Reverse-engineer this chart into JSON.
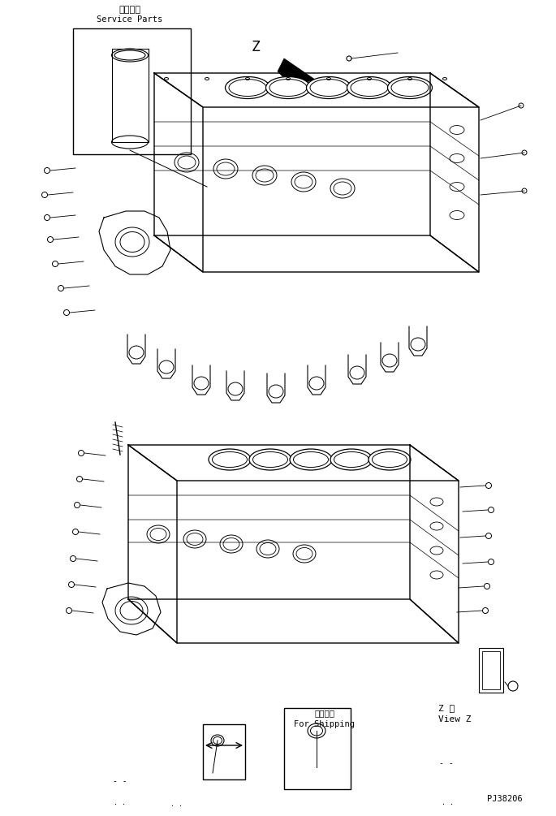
{
  "title_jp": "補給専用",
  "title_en": "Service Parts",
  "view_label_jp": "Z 視",
  "view_label_en": "View Z",
  "shipping_jp": "運搬部品",
  "shipping_en": "For Shipping",
  "part_number": "PJ38206",
  "bg_color": "#ffffff",
  "line_color": "#000000",
  "figure_width": 6.85,
  "figure_height": 10.05
}
